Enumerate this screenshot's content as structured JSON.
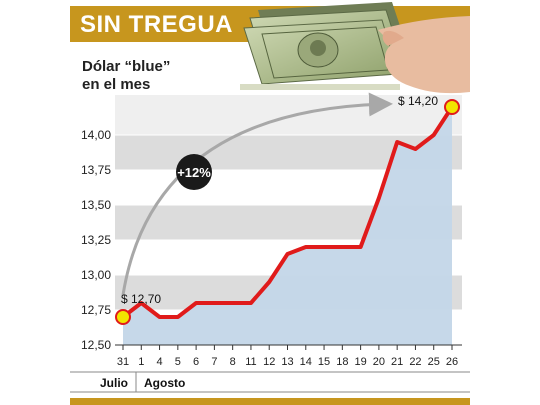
{
  "header": {
    "title": "SIN TREGUA"
  },
  "subtitle": {
    "line1": "Dólar “blue”",
    "line2": "en el mes"
  },
  "badge": {
    "text": "+12%"
  },
  "colors": {
    "gold": "#c7961e",
    "line": "#e01b1b",
    "area": "#c3d6e8",
    "band": "#dcdcdc",
    "marker": "#f2e500",
    "arrow": "#a8a8a8",
    "badge": "#1a1a1a"
  },
  "months": [
    {
      "label": "Julio"
    },
    {
      "label": "Agosto"
    }
  ],
  "annotations": {
    "start": "$ 12,70",
    "end": "$ 14,20"
  },
  "chart_data": {
    "type": "area",
    "x": [
      "31",
      "1",
      "4",
      "5",
      "6",
      "7",
      "8",
      "11",
      "12",
      "13",
      "14",
      "15",
      "18",
      "19",
      "20",
      "21",
      "22",
      "25",
      "26"
    ],
    "values": [
      12.7,
      12.8,
      12.7,
      12.7,
      12.8,
      12.8,
      12.8,
      12.8,
      12.95,
      13.15,
      13.2,
      13.2,
      13.2,
      13.2,
      13.55,
      13.95,
      13.9,
      14.0,
      14.2
    ],
    "y_ticks": [
      "12,50",
      "12,75",
      "13,00",
      "13,25",
      "13,50",
      "13,75",
      "14,00"
    ],
    "ylim": [
      12.5,
      14.25
    ],
    "grid": "alternating horizontal bands"
  }
}
